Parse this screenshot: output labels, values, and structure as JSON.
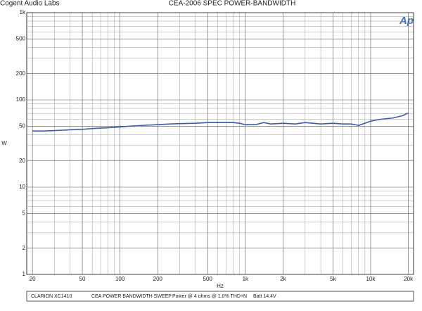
{
  "header": {
    "left": "Cogent Audio Labs",
    "title": "CEA-2006 SPEC POWER-BANDWIDTH",
    "logo": "Ap"
  },
  "chart_data": {
    "type": "line",
    "x_label": "Hz",
    "y_label": "W",
    "log_x": true,
    "log_y": true,
    "grid": true,
    "xlim": [
      18,
      22000
    ],
    "ylim": [
      1,
      1000
    ],
    "xticks": [
      20,
      50,
      100,
      200,
      500,
      {
        "value": 1000,
        "label": "1k"
      },
      {
        "value": 2000,
        "label": "2k"
      },
      {
        "value": 5000,
        "label": "5k"
      },
      {
        "value": 10000,
        "label": "10k"
      },
      {
        "value": 20000,
        "label": "20k"
      }
    ],
    "x_minor_ticks": [
      30,
      40,
      60,
      70,
      80,
      90,
      300,
      400,
      600,
      700,
      800,
      900,
      3000,
      4000,
      6000,
      7000,
      8000,
      9000
    ],
    "yticks": [
      1,
      2,
      5,
      10,
      20,
      50,
      100,
      200,
      500,
      {
        "value": 1000,
        "label": "1k"
      }
    ],
    "y_minor_ticks": [
      3,
      4,
      6,
      7,
      8,
      9,
      30,
      40,
      60,
      70,
      80,
      90,
      300,
      400,
      600,
      700,
      800,
      900
    ],
    "series": [
      {
        "name": "CLARION  XC1410",
        "color": "#3b5ba5",
        "x": [
          20,
          25,
          30,
          35,
          40,
          50,
          60,
          70,
          80,
          100,
          120,
          150,
          200,
          250,
          300,
          400,
          500,
          600,
          700,
          800,
          900,
          1000,
          1200,
          1400,
          1600,
          2000,
          2500,
          3000,
          4000,
          5000,
          6000,
          7000,
          8000,
          10000,
          12000,
          15000,
          18000,
          20000
        ],
        "values": [
          44,
          44,
          44.5,
          45,
          45.5,
          46,
          47,
          47.5,
          48,
          49,
          50,
          51,
          52,
          53,
          53.5,
          54,
          55,
          55,
          55,
          55,
          54,
          52,
          52,
          55,
          53,
          54,
          53,
          55,
          53,
          54,
          53,
          53,
          51,
          57,
          60,
          62,
          66,
          71
        ]
      }
    ]
  },
  "footer": {
    "device": "CLARION  XC1410",
    "test": "CEA POWER BANDWIDTH SWEEP",
    "condition": "Power @ 4 ohms @ 1.0% THD+N",
    "battery": "Batt 14.4V"
  }
}
